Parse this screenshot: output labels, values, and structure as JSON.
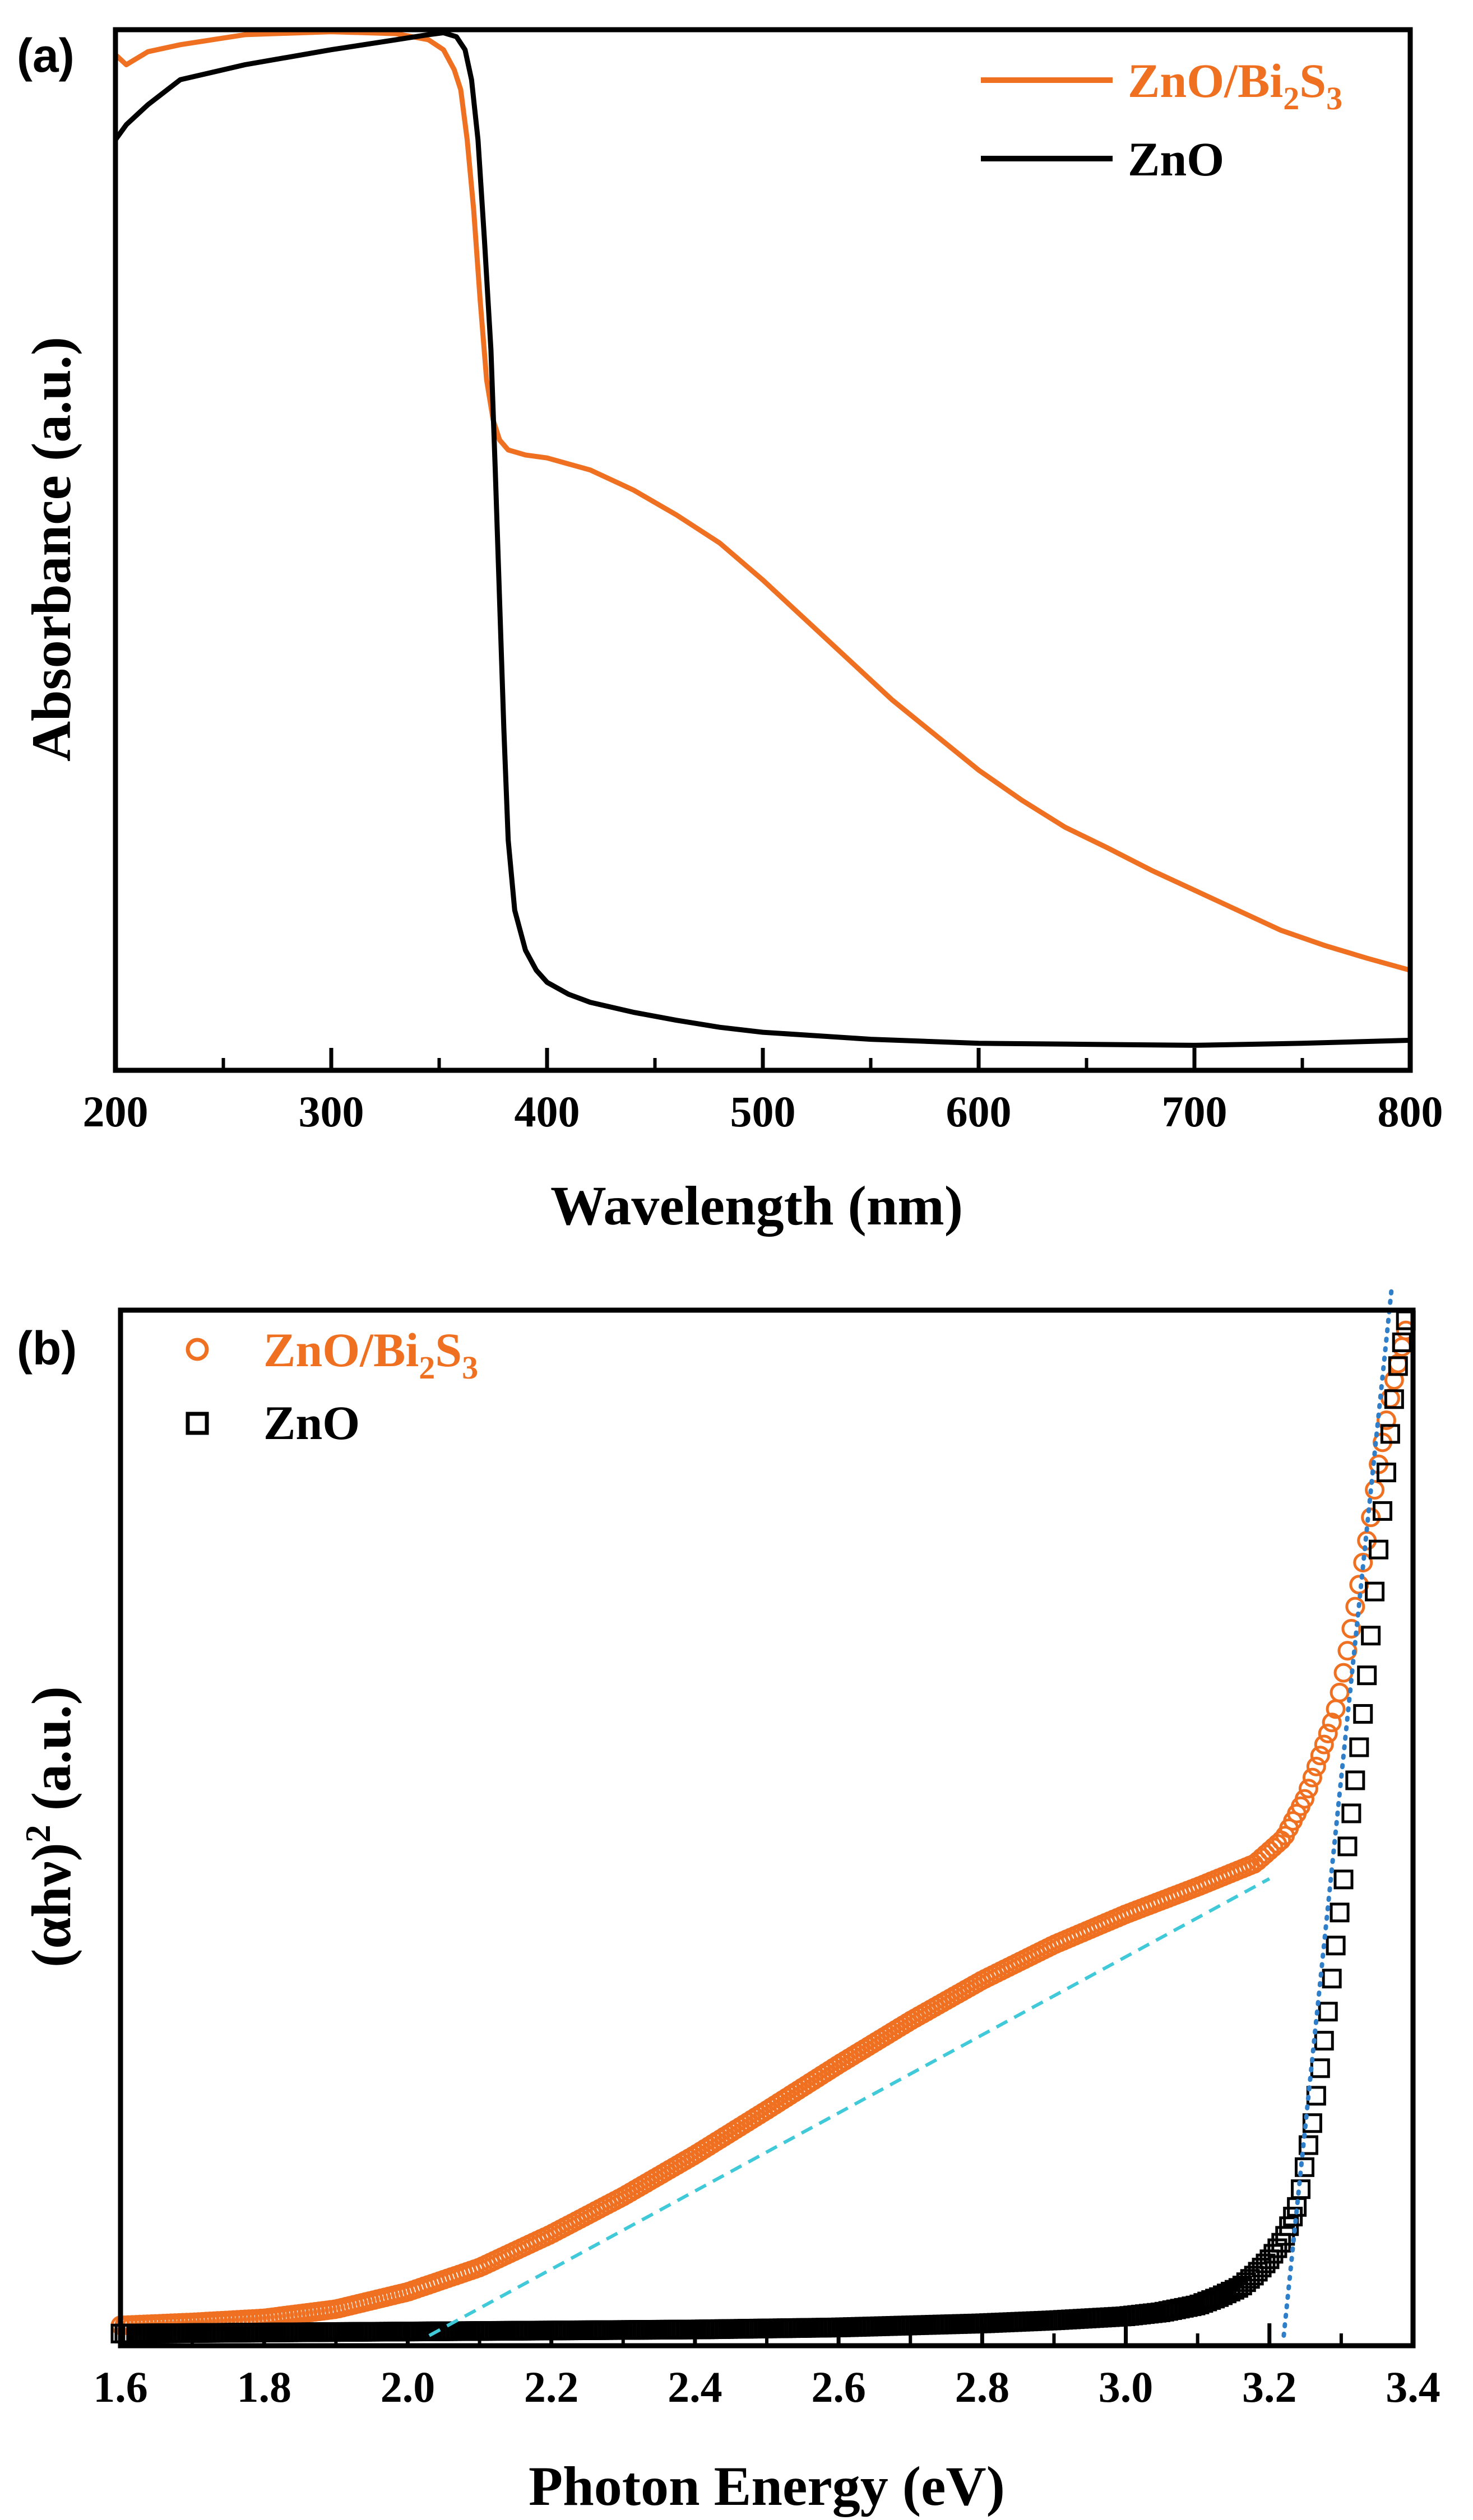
{
  "chart_data": [
    {
      "panel_label": "(a)",
      "type": "line",
      "xlabel": "Wavelength (nm)",
      "ylabel": "Absorbance (a.u.)",
      "xlim": [
        200,
        800
      ],
      "ylim": [
        0,
        1.04
      ],
      "xticks": [
        "200",
        "300",
        "400",
        "500",
        "600",
        "700",
        "800"
      ],
      "xtick_values": [
        200,
        300,
        400,
        500,
        600,
        700,
        800
      ],
      "minor_xtick_step": 50,
      "yticks_shown": false,
      "legend_position": "top-right",
      "series": [
        {
          "name": "ZnO/Bi2S3",
          "legend_main": "ZnO/Bi",
          "legend_sub1": "2",
          "legend_mid": "S",
          "legend_sub2": "3",
          "color": "#f07022",
          "x": [
            200,
            205,
            215,
            230,
            260,
            300,
            330,
            345,
            352,
            357,
            360,
            363,
            366,
            369,
            372,
            375,
            378,
            382,
            390,
            400,
            420,
            440,
            460,
            480,
            500,
            520,
            540,
            560,
            580,
            600,
            620,
            640,
            660,
            680,
            700,
            720,
            740,
            760,
            780,
            800
          ],
          "y": [
            1.015,
            1.005,
            1.018,
            1.025,
            1.035,
            1.038,
            1.036,
            1.03,
            1.02,
            1.0,
            0.98,
            0.93,
            0.86,
            0.77,
            0.69,
            0.65,
            0.63,
            0.62,
            0.615,
            0.612,
            0.6,
            0.58,
            0.555,
            0.527,
            0.49,
            0.45,
            0.41,
            0.37,
            0.335,
            0.3,
            0.27,
            0.243,
            0.222,
            0.2,
            0.18,
            0.16,
            0.14,
            0.125,
            0.112,
            0.1
          ]
        },
        {
          "name": "ZnO",
          "color": "#000000",
          "x": [
            200,
            205,
            215,
            230,
            260,
            300,
            330,
            345,
            352,
            358,
            362,
            365,
            368,
            371,
            374,
            376,
            378,
            380,
            382,
            385,
            390,
            395,
            400,
            410,
            420,
            440,
            460,
            480,
            500,
            550,
            600,
            650,
            700,
            750,
            800
          ],
          "y": [
            0.93,
            0.945,
            0.965,
            0.99,
            1.005,
            1.02,
            1.03,
            1.035,
            1.037,
            1.033,
            1.02,
            0.99,
            0.93,
            0.83,
            0.72,
            0.6,
            0.47,
            0.34,
            0.23,
            0.16,
            0.12,
            0.1,
            0.088,
            0.076,
            0.068,
            0.058,
            0.05,
            0.043,
            0.038,
            0.031,
            0.027,
            0.026,
            0.025,
            0.027,
            0.03
          ]
        }
      ]
    },
    {
      "panel_label": "(b)",
      "type": "scatter",
      "xlabel": "Photon Energy (eV)",
      "ylabel_main": "(αhν)",
      "ylabel_sup": "2",
      "ylabel_tail": " (a.u.)",
      "ylabel": "(αhν)^2 (a.u.)",
      "xlim": [
        1.6,
        3.4
      ],
      "ylim": [
        -0.02,
        1.0
      ],
      "xticks": [
        "1.6",
        "1.8",
        "2.0",
        "2.2",
        "2.4",
        "2.6",
        "2.8",
        "3.0",
        "3.2",
        "3.4"
      ],
      "xtick_values": [
        1.6,
        1.8,
        2.0,
        2.2,
        2.4,
        2.6,
        2.8,
        3.0,
        3.2,
        3.4
      ],
      "minor_xtick_step": 0.1,
      "yticks_shown": false,
      "legend_position": "top-left",
      "series": [
        {
          "name": "ZnO/Bi2S3",
          "legend_main": "ZnO/Bi",
          "legend_sub1": "2",
          "legend_mid": "S",
          "legend_sub2": "3",
          "marker": "open-circle",
          "color": "#f07022",
          "x": [
            1.6,
            1.7,
            1.8,
            1.9,
            2.0,
            2.1,
            2.2,
            2.3,
            2.4,
            2.5,
            2.6,
            2.7,
            2.8,
            2.9,
            3.0,
            3.1,
            3.18,
            3.22,
            3.25,
            3.27,
            3.29,
            3.3,
            3.31,
            3.32,
            3.33,
            3.34,
            3.35,
            3.36,
            3.37,
            3.38,
            3.39
          ],
          "y": [
            0.0,
            0.003,
            0.007,
            0.016,
            0.033,
            0.057,
            0.09,
            0.127,
            0.168,
            0.212,
            0.257,
            0.3,
            0.34,
            0.375,
            0.405,
            0.432,
            0.455,
            0.48,
            0.52,
            0.56,
            0.6,
            0.63,
            0.67,
            0.71,
            0.75,
            0.79,
            0.84,
            0.88,
            0.92,
            0.95,
            0.98
          ]
        },
        {
          "name": "ZnO",
          "marker": "open-square",
          "color": "#000000",
          "x": [
            1.6,
            1.8,
            2.0,
            2.2,
            2.4,
            2.6,
            2.8,
            2.9,
            3.0,
            3.05,
            3.1,
            3.13,
            3.16,
            3.18,
            3.2,
            3.22,
            3.24,
            3.25,
            3.26,
            3.27,
            3.28,
            3.29,
            3.3,
            3.31,
            3.32,
            3.33,
            3.34,
            3.35,
            3.36,
            3.37,
            3.38,
            3.39
          ],
          "y": [
            -0.008,
            -0.007,
            -0.006,
            -0.005,
            -0.004,
            -0.002,
            0.002,
            0.005,
            0.009,
            0.013,
            0.02,
            0.028,
            0.038,
            0.05,
            0.065,
            0.085,
            0.12,
            0.16,
            0.2,
            0.25,
            0.3,
            0.36,
            0.42,
            0.48,
            0.54,
            0.6,
            0.67,
            0.75,
            0.82,
            0.89,
            0.95,
            0.99
          ]
        }
      ],
      "fit_lines": [
        {
          "name": "ZnO/Bi2S3 tangent",
          "color": "#3fc9d9",
          "style": "dashed",
          "x": [
            2.03,
            3.2
          ],
          "y": [
            -0.01,
            0.44
          ]
        },
        {
          "name": "ZnO tangent",
          "color": "#2f7ec9",
          "style": "dotted",
          "x": [
            3.22,
            3.37
          ],
          "y": [
            -0.01,
            1.02
          ]
        }
      ]
    }
  ]
}
